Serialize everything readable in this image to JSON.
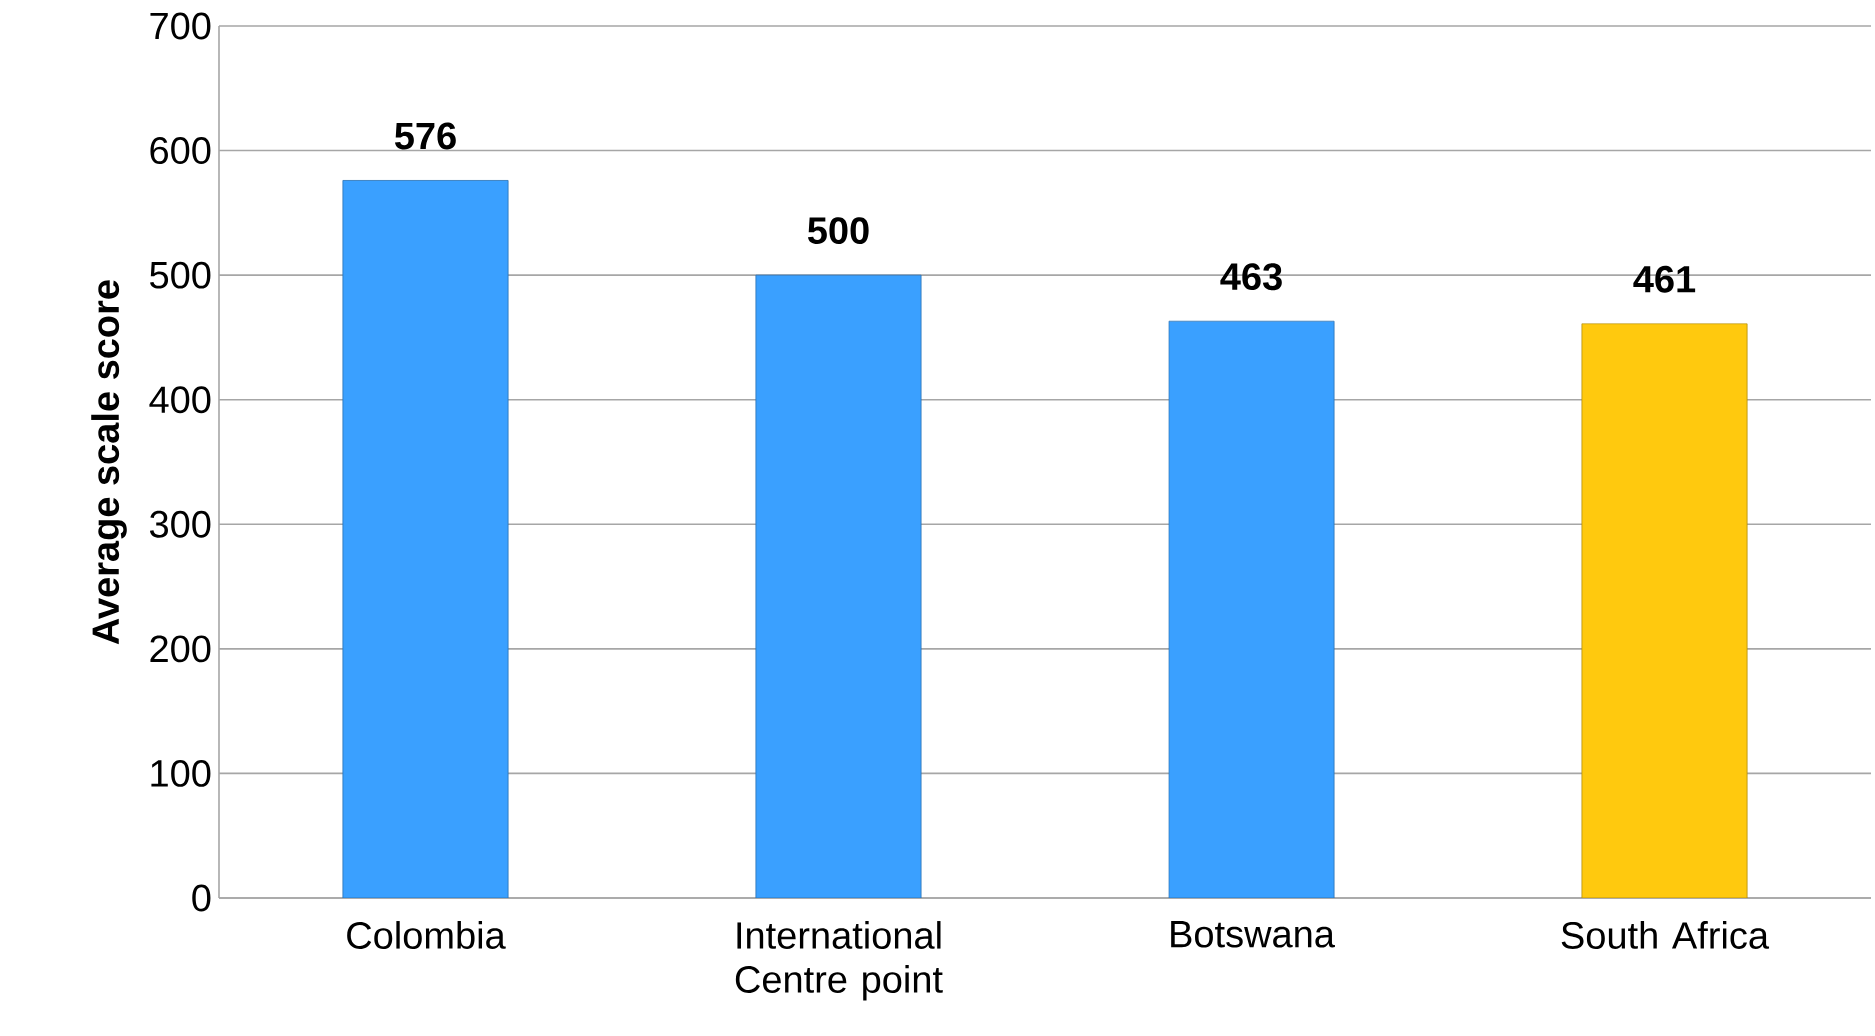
{
  "chart_data": {
    "type": "bar",
    "ylabel": "Average scale score",
    "categories": [
      "Colombia",
      "International Centre point",
      "Botswana",
      "South Africa"
    ],
    "values": [
      576,
      500,
      463,
      461
    ],
    "colors": [
      "#3aa0ff",
      "#3aa0ff",
      "#3aa0ff",
      "#ffc90e"
    ],
    "ylim": [
      0,
      700
    ],
    "yticks": [
      0,
      100,
      200,
      300,
      400,
      500,
      600,
      700
    ],
    "grid": "y",
    "data_labels": true
  }
}
